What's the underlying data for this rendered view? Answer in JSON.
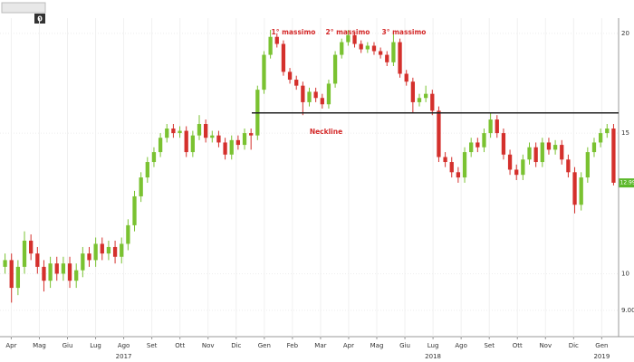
{
  "toolbar_label": "0",
  "chart_data": {
    "type": "candlestick",
    "log_scale": true,
    "grid": true,
    "up_color": "#7ac231",
    "down_color": "#d4302c",
    "ylim": [
      8.34,
      20.9
    ],
    "yticks": [
      {
        "value": 9,
        "label": "9.00"
      },
      10,
      15,
      20
    ],
    "months": [
      "Apr",
      "Mag",
      "Giu",
      "Lug",
      "Ago",
      "Set",
      "Ott",
      "Nov",
      "Dic",
      "Gen",
      "Feb",
      "Mar",
      "Apr",
      "Mag",
      "Giu",
      "Lug",
      "Ago",
      "Set",
      "Ott",
      "Nov",
      "Dic",
      "Gen"
    ],
    "years": [
      null,
      null,
      null,
      null,
      "2017",
      null,
      null,
      null,
      null,
      null,
      null,
      null,
      null,
      null,
      null,
      "2018",
      null,
      null,
      null,
      null,
      null,
      "2019"
    ],
    "open": [
      10.2,
      10.4,
      9.6,
      10.2,
      11.0,
      10.6,
      10.2,
      9.8,
      10.3,
      10.0,
      10.3,
      9.8,
      10.1,
      10.6,
      10.4,
      10.9,
      10.6,
      10.8,
      10.5,
      10.9,
      11.5,
      12.5,
      13.2,
      13.8,
      14.2,
      14.8,
      15.2,
      15.0,
      15.1,
      14.2,
      14.9,
      15.4,
      14.8,
      14.9,
      14.6,
      14.1,
      14.7,
      14.5,
      15.0,
      14.9,
      17.0,
      18.8,
      19.8,
      19.4,
      17.9,
      17.5,
      17.2,
      16.4,
      16.9,
      16.6,
      16.3,
      17.3,
      18.8,
      19.5,
      19.9,
      19.4,
      19.1,
      19.3,
      19.0,
      18.8,
      18.4,
      19.5,
      17.8,
      17.4,
      16.4,
      16.6,
      16.8,
      16.0,
      14.0,
      13.8,
      13.4,
      13.2,
      14.2,
      14.6,
      14.4,
      15.0,
      15.6,
      15.0,
      14.1,
      13.5,
      13.3,
      13.9,
      14.4,
      13.8,
      14.6,
      14.3,
      14.5,
      13.9,
      13.4,
      12.2,
      13.2,
      14.2,
      14.6,
      15.0,
      15.2
    ],
    "high": [
      10.6,
      10.6,
      10.4,
      11.3,
      11.2,
      10.8,
      10.4,
      10.5,
      10.5,
      10.5,
      10.5,
      10.3,
      10.8,
      10.8,
      11.1,
      11.1,
      11.0,
      11.0,
      11.1,
      11.7,
      12.7,
      13.4,
      14.0,
      14.4,
      15.0,
      15.4,
      15.4,
      15.3,
      15.3,
      15.1,
      15.8,
      15.6,
      15.1,
      15.1,
      14.8,
      14.9,
      14.9,
      15.2,
      15.2,
      17.2,
      19.0,
      20.2,
      20.0,
      19.6,
      18.1,
      17.7,
      17.4,
      17.1,
      17.1,
      16.8,
      17.5,
      19.0,
      19.7,
      20.2,
      20.1,
      19.6,
      19.5,
      19.5,
      19.2,
      19.0,
      20.1,
      19.7,
      18.0,
      17.6,
      16.8,
      17.2,
      17.0,
      16.2,
      14.2,
      14.0,
      13.6,
      14.4,
      14.8,
      14.8,
      15.2,
      15.9,
      15.8,
      15.2,
      14.3,
      13.7,
      14.1,
      14.6,
      14.6,
      14.8,
      14.8,
      14.7,
      14.7,
      14.1,
      13.6,
      13.4,
      14.4,
      14.8,
      15.2,
      15.4,
      15.4
    ],
    "low": [
      10.0,
      9.2,
      9.4,
      10.0,
      10.4,
      10.0,
      9.5,
      9.6,
      9.8,
      9.8,
      9.6,
      9.6,
      9.9,
      10.2,
      10.2,
      10.4,
      10.4,
      10.3,
      10.3,
      10.7,
      11.3,
      12.3,
      13.0,
      13.6,
      14.0,
      14.6,
      14.8,
      14.8,
      14.0,
      14.0,
      14.7,
      14.6,
      14.6,
      14.4,
      13.9,
      13.9,
      14.3,
      14.3,
      14.3,
      14.7,
      16.8,
      18.6,
      19.2,
      17.7,
      17.3,
      17.0,
      15.8,
      16.2,
      16.4,
      16.1,
      16.1,
      17.1,
      18.6,
      19.3,
      19.2,
      18.9,
      18.9,
      18.8,
      18.6,
      18.2,
      18.2,
      17.6,
      17.2,
      15.9,
      16.2,
      16.4,
      15.8,
      13.8,
      13.6,
      13.2,
      13.0,
      13.0,
      14.0,
      14.2,
      14.2,
      14.8,
      14.8,
      13.9,
      13.3,
      13.1,
      13.1,
      13.7,
      13.6,
      13.6,
      14.1,
      14.1,
      13.7,
      13.2,
      11.9,
      12.0,
      13.0,
      14.0,
      14.4,
      14.8,
      12.9
    ],
    "close": [
      10.4,
      9.6,
      10.2,
      11.0,
      10.6,
      10.2,
      9.8,
      10.3,
      10.0,
      10.3,
      9.8,
      10.1,
      10.6,
      10.4,
      10.9,
      10.6,
      10.8,
      10.5,
      10.9,
      11.5,
      12.5,
      13.2,
      13.8,
      14.2,
      14.8,
      15.2,
      15.0,
      15.1,
      14.2,
      14.9,
      15.4,
      14.8,
      14.9,
      14.6,
      14.1,
      14.7,
      14.5,
      15.0,
      14.9,
      17.0,
      18.8,
      19.8,
      19.4,
      17.9,
      17.5,
      17.2,
      16.4,
      16.9,
      16.6,
      16.3,
      17.3,
      18.8,
      19.5,
      19.9,
      19.4,
      19.1,
      19.3,
      19.0,
      18.8,
      18.4,
      19.5,
      17.8,
      17.4,
      16.4,
      16.6,
      16.8,
      16.0,
      14.0,
      13.8,
      13.4,
      13.2,
      14.2,
      14.6,
      14.4,
      15.0,
      15.6,
      15.0,
      14.1,
      13.5,
      13.3,
      13.9,
      14.4,
      13.8,
      14.6,
      14.3,
      14.5,
      13.9,
      13.4,
      12.2,
      13.2,
      14.2,
      14.6,
      15.0,
      15.2,
      13.0
    ],
    "neckline": {
      "value": 15.9,
      "label": "Neckline"
    },
    "annotations": [
      "1° massimo",
      "2° massimo",
      "3° massimo"
    ],
    "last_price": 12.993
  }
}
